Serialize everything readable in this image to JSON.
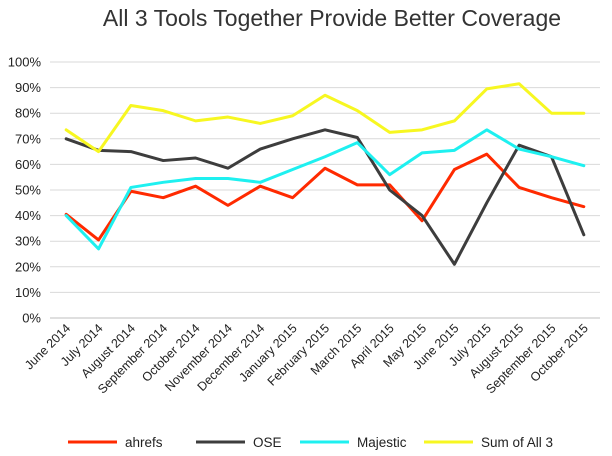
{
  "chart_data": {
    "type": "line",
    "title": "All 3 Tools Together Provide Better Coverage",
    "xlabel": "",
    "ylabel": "",
    "ylim": [
      0,
      100
    ],
    "y_step": 10,
    "y_tick_suffix": "%",
    "grid": true,
    "legend_position": "bottom",
    "x": [
      "June 2014",
      "July 2014",
      "August 2014",
      "September 2014",
      "October 2014",
      "November 2014",
      "December 2014",
      "January 2015",
      "February 2015",
      "March 2015",
      "April 2015",
      "May 2015",
      "June 2015",
      "July 2015",
      "August 2015",
      "September 2015",
      "October 2015"
    ],
    "series": [
      {
        "name": "ahrefs",
        "color": "#ff2a00",
        "values": [
          40.5,
          30.5,
          49.5,
          47,
          51.5,
          44,
          51.5,
          47,
          58.5,
          52,
          52,
          38,
          58,
          64,
          51,
          47,
          43.5
        ]
      },
      {
        "name": "OSE",
        "color": "#3d3d3d",
        "values": [
          70,
          65.5,
          65,
          61.5,
          62.5,
          58.5,
          66,
          70,
          73.5,
          70.5,
          50,
          40,
          21,
          45,
          67.5,
          63,
          32.5
        ]
      },
      {
        "name": "Majestic",
        "color": "#1ef0f0",
        "values": [
          40,
          27,
          51,
          53,
          54.5,
          54.5,
          53,
          58,
          63,
          68.5,
          56,
          64.5,
          65.5,
          73.5,
          66,
          63,
          59.5
        ]
      },
      {
        "name": "Sum of All 3",
        "color": "#f7f721",
        "values": [
          73.5,
          65,
          83,
          81,
          77,
          78.5,
          76,
          79,
          87,
          81,
          72.5,
          73.5,
          77,
          89.5,
          91.5,
          80,
          80
        ]
      }
    ]
  }
}
